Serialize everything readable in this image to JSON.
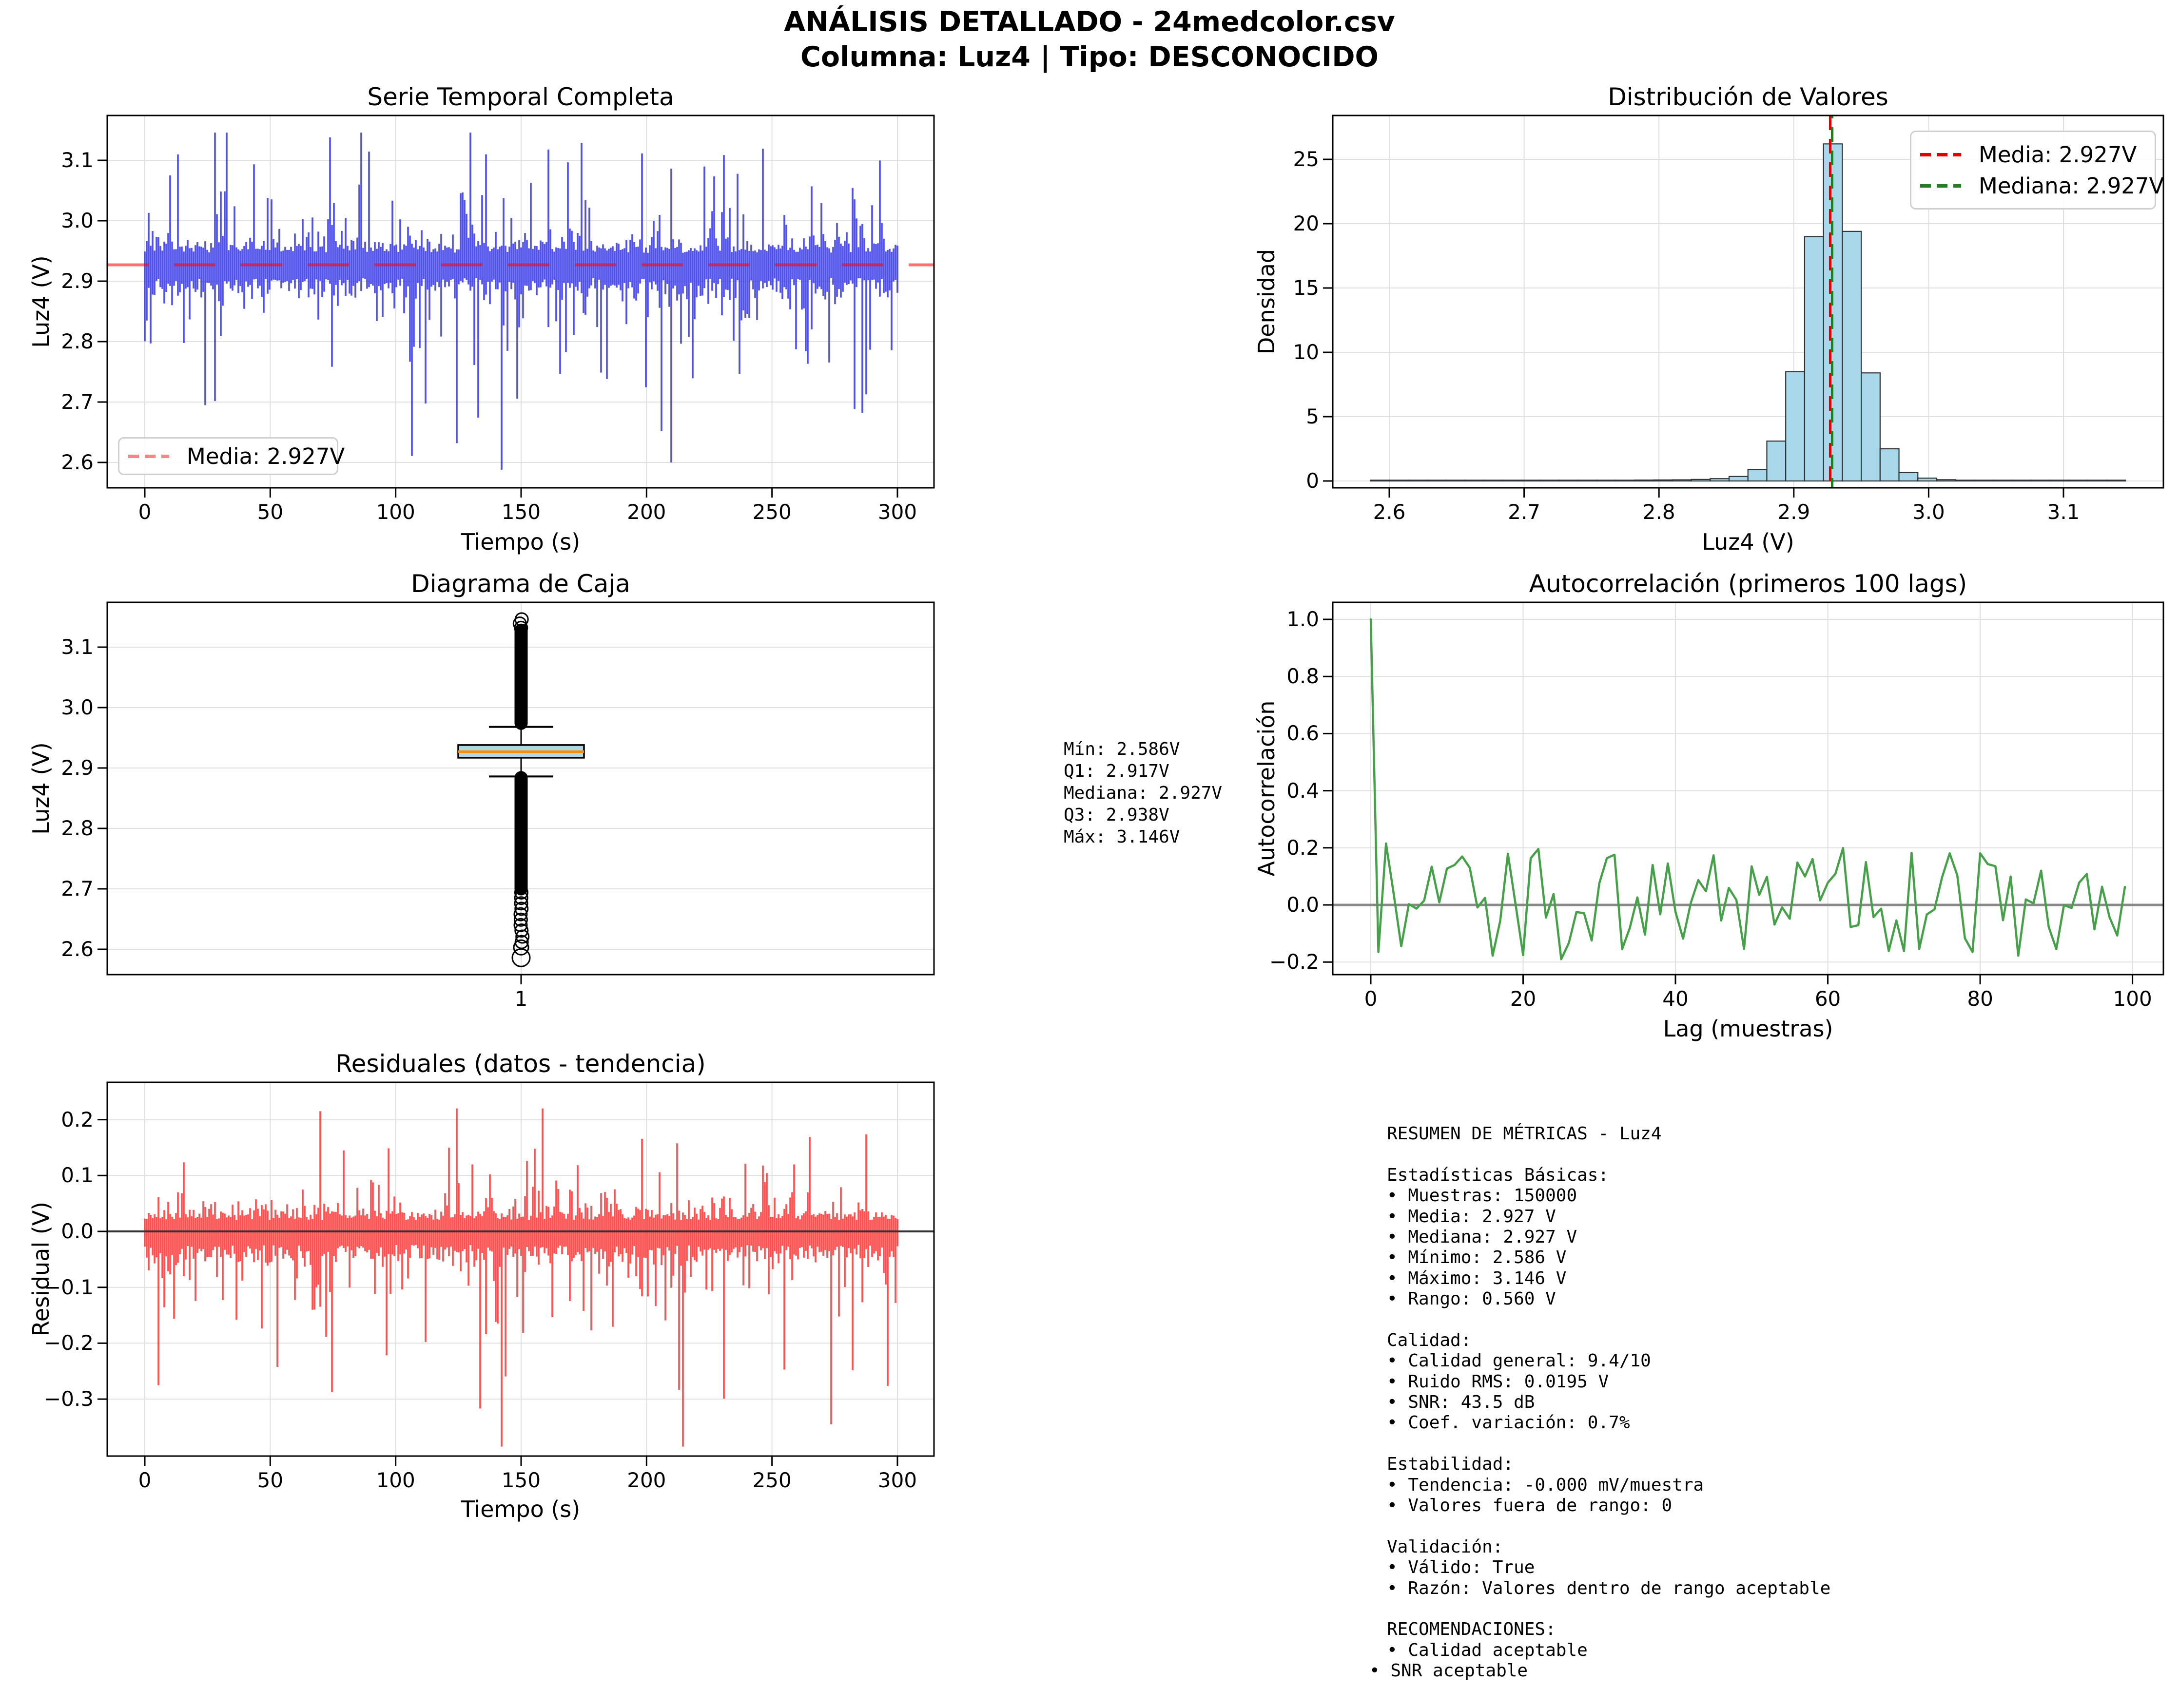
{
  "suptitle": {
    "line1": "ANÁLISIS DETALLADO - 24medcolor.csv",
    "line2": "Columna: Luz4 | Tipo: DESCONOCIDO"
  },
  "palette": {
    "series_blue": "rgba(42,42,230,0.82)",
    "mean_red_line": "rgba(255,0,0,0.55)",
    "mean_red_legend": "#fb8484",
    "legend_red": "#e00000",
    "legend_green": "#1e7d1e",
    "hist_fill": "#a8d8ea",
    "hist_edge": "#2f3336",
    "median_green_line": "#1e7d1e",
    "box_fill": "#add8e6",
    "box_median_orange": "#ff8c00",
    "acf_green": "#46a049",
    "resid_red": "rgba(255,35,35,0.8)",
    "grid": "#e0e0e0",
    "zero_gray": "#888888",
    "zero_black": "#333333"
  },
  "charts": {
    "serie": {
      "title": "Serie Temporal Completa",
      "xlabel": "Tiempo (s)",
      "ylabel": "Luz4 (V)",
      "xticks": [
        "0",
        "50",
        "100",
        "150",
        "200",
        "250",
        "300"
      ],
      "xtick_vals": [
        0,
        50,
        100,
        150,
        200,
        250,
        300
      ],
      "yticks": [
        "2.6",
        "2.7",
        "2.8",
        "2.9",
        "3.0",
        "3.1"
      ],
      "ytick_vals": [
        2.6,
        2.7,
        2.8,
        2.9,
        3.0,
        3.1
      ],
      "legend_label": "Media: 2.927V",
      "mean": 2.927
    },
    "hist": {
      "title": "Distribución de Valores",
      "xlabel": "Luz4 (V)",
      "ylabel": "Densidad",
      "xticks": [
        "2.6",
        "2.7",
        "2.8",
        "2.9",
        "3.0",
        "3.1"
      ],
      "xtick_vals": [
        2.6,
        2.7,
        2.8,
        2.9,
        3.0,
        3.1
      ],
      "yticks": [
        "0",
        "5",
        "10",
        "15",
        "20",
        "25"
      ],
      "ytick_vals": [
        0,
        5,
        10,
        15,
        20,
        25
      ],
      "legend_mean": "Media: 2.927V",
      "legend_median": "Mediana: 2.927V",
      "mean": 2.927,
      "median": 2.927
    },
    "box": {
      "title": "Diagrama de Caja",
      "ylabel": "Luz4 (V)",
      "xticks": [
        "1"
      ],
      "yticks": [
        "2.6",
        "2.7",
        "2.8",
        "2.9",
        "3.0",
        "3.1"
      ],
      "ytick_vals": [
        2.6,
        2.7,
        2.8,
        2.9,
        3.0,
        3.1
      ]
    },
    "acf": {
      "title": "Autocorrelación (primeros 100 lags)",
      "xlabel": "Lag (muestras)",
      "ylabel": "Autocorrelación",
      "xticks": [
        "0",
        "20",
        "40",
        "60",
        "80",
        "100"
      ],
      "xtick_vals": [
        0,
        20,
        40,
        60,
        80,
        100
      ],
      "yticks": [
        "−0.2",
        "0.0",
        "0.2",
        "0.4",
        "0.6",
        "0.8",
        "1.0"
      ],
      "ytick_vals": [
        -0.2,
        0.0,
        0.2,
        0.4,
        0.6,
        0.8,
        1.0
      ]
    },
    "resid": {
      "title": "Residuales (datos - tendencia)",
      "xlabel": "Tiempo (s)",
      "ylabel": "Residual (V)",
      "xticks": [
        "0",
        "50",
        "100",
        "150",
        "200",
        "250",
        "300"
      ],
      "xtick_vals": [
        0,
        50,
        100,
        150,
        200,
        250,
        300
      ],
      "yticks": [
        "−0.3",
        "−0.2",
        "−0.1",
        "0.0",
        "0.1",
        "0.2"
      ],
      "ytick_vals": [
        -0.3,
        -0.2,
        -0.1,
        0.0,
        0.1,
        0.2
      ]
    }
  },
  "stats_box": {
    "lines": [
      "Mín: 2.586V",
      "Q1: 2.917V",
      "Mediana: 2.927V",
      "Q3: 2.938V",
      "Máx: 3.146V"
    ]
  },
  "metrics": {
    "lines": [
      "RESUMEN DE MÉTRICAS - Luz4",
      "",
      "Estadísticas Básicas:",
      "• Muestras: 150000",
      "• Media: 2.927 V",
      "• Mediana: 2.927 V",
      "• Mínimo: 2.586 V",
      "• Máximo: 3.146 V",
      "• Rango: 0.560 V",
      "",
      "Calidad:",
      "• Calidad general: 9.4/10",
      "• Ruido RMS: 0.0195 V",
      "• SNR: 43.5 dB",
      "• Coef. variación: 0.7%",
      "",
      "Estabilidad:",
      "• Tendencia: -0.000 mV/muestra",
      "• Valores fuera de rango: 0",
      "",
      "Validación:",
      "• Válido: True",
      "• Razón: Valores dentro de rango aceptable",
      "",
      "RECOMENDACIONES:",
      "• Calidad aceptable",
      "• SNR aceptable"
    ]
  },
  "chart_data": [
    {
      "type": "line",
      "title": "Serie Temporal Completa",
      "xlabel": "Tiempo (s)",
      "ylabel": "Luz4 (V)",
      "x_range": [
        0,
        300
      ],
      "n_samples": 150000,
      "mean": 2.927,
      "median": 2.927,
      "min": 2.586,
      "max": 3.146,
      "core_band": [
        2.88,
        2.97
      ],
      "mean_line": {
        "value": 2.927,
        "style": "dashed",
        "color": "red"
      },
      "legend": [
        "Media: 2.927V"
      ],
      "grid": true
    },
    {
      "type": "bar",
      "title": "Distribución de Valores",
      "xlabel": "Luz4 (V)",
      "ylabel": "Densidad",
      "bin_start": 2.586,
      "bin_width": 0.014,
      "densities": [
        0.02,
        0.015,
        0.02,
        0.02,
        0.025,
        0.02,
        0.03,
        0.03,
        0.035,
        0.04,
        0.045,
        0.05,
        0.055,
        0.06,
        0.07,
        0.08,
        0.09,
        0.12,
        0.18,
        0.35,
        0.9,
        3.1,
        8.5,
        19.0,
        26.2,
        19.4,
        8.4,
        2.5,
        0.65,
        0.22,
        0.1,
        0.06,
        0.05,
        0.04,
        0.035,
        0.03,
        0.025,
        0.02,
        0.02,
        0.03
      ],
      "ylim": [
        0,
        27
      ],
      "vlines": [
        {
          "label": "Media: 2.927V",
          "value": 2.927,
          "color": "red"
        },
        {
          "label": "Mediana: 2.927V",
          "value": 2.927,
          "color": "green"
        }
      ],
      "legend_position": "upper right",
      "grid": true
    },
    {
      "type": "box",
      "title": "Diagrama de Caja",
      "ylabel": "Luz4 (V)",
      "category": "1",
      "min": 2.586,
      "q1": 2.917,
      "median": 2.927,
      "q3": 2.938,
      "max": 3.146,
      "whisker_low": 2.886,
      "whisker_high": 2.968,
      "outliers_above": [
        2.972,
        3.128,
        3.146
      ],
      "outliers_below": [
        2.884,
        2.7,
        2.586
      ],
      "grid": true
    },
    {
      "type": "line",
      "title": "Autocorrelación (primeros 100 lags)",
      "xlabel": "Lag (muestras)",
      "ylabel": "Autocorrelación",
      "x_range": [
        0,
        99
      ],
      "key_values": {
        "lag0": 1.0,
        "lag1": -0.17,
        "lag2": 0.22,
        "lag25": -0.19
      },
      "oscillation_band": [
        -0.19,
        0.22
      ],
      "zero_line": true,
      "grid": true
    },
    {
      "type": "line",
      "title": "Residuales (datos - tendencia)",
      "xlabel": "Tiempo (s)",
      "ylabel": "Residual (V)",
      "x_range": [
        0,
        300
      ],
      "mean": 0.0,
      "approx_max": 0.22,
      "approx_min": -0.39,
      "core_band": [
        -0.06,
        0.05
      ],
      "zero_line": true,
      "grid": true
    }
  ]
}
